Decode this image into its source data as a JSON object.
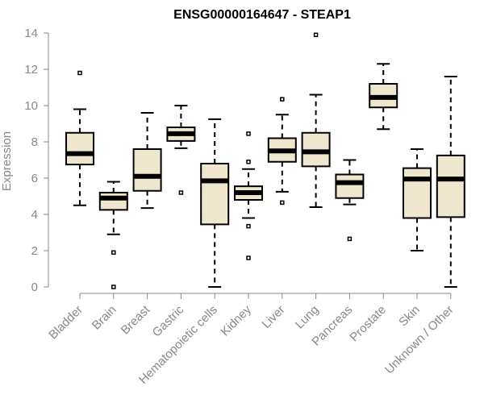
{
  "chart_data": {
    "type": "boxplot",
    "title": "ENSG00000164647 - STEAP1",
    "xlabel": "",
    "ylabel": "Expression",
    "ylim": [
      0,
      14
    ],
    "yticks": [
      0,
      2,
      4,
      6,
      8,
      10,
      12,
      14
    ],
    "colors": {
      "box_fill": "#efe7cd",
      "stroke": "#000000",
      "axis": "#888888"
    },
    "categories": [
      "Bladder",
      "Brain",
      "Breast",
      "Gastric",
      "Hematopoietic cells",
      "Kidney",
      "Liver",
      "Lung",
      "Pancreas",
      "Prostate",
      "Skin",
      "Unknown / Other"
    ],
    "boxes": [
      {
        "min": 4.5,
        "q1": 6.75,
        "median": 7.35,
        "q3": 8.5,
        "max": 9.8,
        "outliers": [
          11.8
        ]
      },
      {
        "min": 2.9,
        "q1": 4.25,
        "median": 4.9,
        "q3": 5.2,
        "max": 5.8,
        "outliers": [
          1.9,
          0.0
        ]
      },
      {
        "min": 4.35,
        "q1": 5.3,
        "median": 6.1,
        "q3": 7.6,
        "max": 9.6,
        "outliers": []
      },
      {
        "min": 7.65,
        "q1": 8.05,
        "median": 8.45,
        "q3": 8.8,
        "max": 10.0,
        "outliers": [
          5.2
        ]
      },
      {
        "min": 0.0,
        "q1": 3.45,
        "median": 5.85,
        "q3": 6.8,
        "max": 9.25,
        "outliers": []
      },
      {
        "min": 3.8,
        "q1": 4.8,
        "median": 5.2,
        "q3": 5.55,
        "max": 6.5,
        "outliers": [
          8.45,
          6.9,
          3.35,
          1.6
        ]
      },
      {
        "min": 5.25,
        "q1": 6.9,
        "median": 7.5,
        "q3": 8.2,
        "max": 9.5,
        "outliers": [
          10.35,
          4.65
        ]
      },
      {
        "min": 4.4,
        "q1": 6.65,
        "median": 7.45,
        "q3": 8.5,
        "max": 10.6,
        "outliers": [
          13.9
        ]
      },
      {
        "min": 4.55,
        "q1": 4.9,
        "median": 5.75,
        "q3": 6.2,
        "max": 7.0,
        "outliers": [
          2.65
        ]
      },
      {
        "min": 8.7,
        "q1": 9.9,
        "median": 10.45,
        "q3": 11.2,
        "max": 12.3,
        "outliers": []
      },
      {
        "min": 2.0,
        "q1": 3.8,
        "median": 5.95,
        "q3": 6.55,
        "max": 7.6,
        "outliers": []
      },
      {
        "min": 0.0,
        "q1": 3.85,
        "median": 5.95,
        "q3": 7.25,
        "max": 11.6,
        "outliers": []
      }
    ]
  }
}
